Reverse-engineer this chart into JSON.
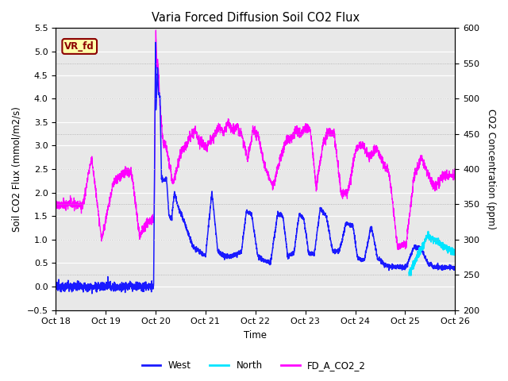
{
  "title": "Varia Forced Diffusion Soil CO2 Flux",
  "ylabel_left": "Soil CO2 Flux (mmol/m2/s)",
  "ylabel_right": "CO2 Concentration (ppm)",
  "xlabel": "Time",
  "ylim_left": [
    -0.5,
    5.5
  ],
  "ylim_right": [
    200,
    600
  ],
  "xlim": [
    0,
    8
  ],
  "xtick_labels": [
    "Oct 18",
    "Oct 19",
    "Oct 20",
    "Oct 21",
    "Oct 22",
    "Oct 23",
    "Oct 24",
    "Oct 25",
    "Oct 26"
  ],
  "yticks_left": [
    -0.5,
    0.0,
    0.5,
    1.0,
    1.5,
    2.0,
    2.5,
    3.0,
    3.5,
    4.0,
    4.5,
    5.0,
    5.5
  ],
  "yticks_right": [
    200,
    250,
    300,
    350,
    400,
    450,
    500,
    550,
    600
  ],
  "color_west": "#1a1aff",
  "color_north": "#00e5ff",
  "color_co2": "#ff00ff",
  "bg_color": "#e8e8e8",
  "grid_color": "#ffffff",
  "label_box_facecolor": "#ffffaa",
  "label_box_edgecolor": "#8b0000",
  "label_text": "VR_fd",
  "legend_labels": [
    "West",
    "North",
    "FD_A_CO2_2"
  ]
}
